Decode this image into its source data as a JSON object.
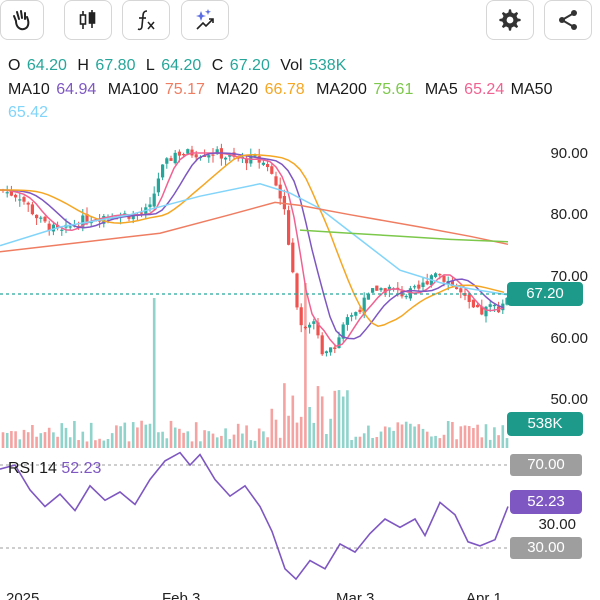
{
  "ohlc": {
    "o_label": "O",
    "o_value": "64.20",
    "h_label": "H",
    "h_value": "67.80",
    "l_label": "L",
    "l_value": "64.20",
    "c_label": "C",
    "c_value": "67.20",
    "vol_label": "Vol",
    "vol_value": "538K"
  },
  "ma": {
    "ma10_label": "MA10",
    "ma10_value": "64.94",
    "ma100_label": "MA100",
    "ma100_value": "75.17",
    "ma20_label": "MA20",
    "ma20_value": "66.78",
    "ma200_label": "MA200",
    "ma200_value": "75.61",
    "ma5_label": "MA5",
    "ma5_value": "65.24",
    "ma50_label": "MA50",
    "ma50_value": "65.42"
  },
  "price_axis": [
    "90.00",
    "80.00",
    "70.00",
    "60.00",
    "50.00"
  ],
  "current_price_tag": "67.20",
  "volume_tag": "538K",
  "rsi": {
    "label": "RSI 14",
    "value": "52.23",
    "level_70": "70.00",
    "level_30": "30.00",
    "axis_30": "30.00"
  },
  "time_axis": [
    "2025",
    "Feb 3",
    "Mar 3",
    "Apr 1"
  ],
  "colors": {
    "up": "#26a69a",
    "down": "#ef5350",
    "ma5": "#f06292",
    "ma10": "#7e57c2",
    "ma20": "#f5a623",
    "ma50": "#81d4fa",
    "ma100": "#ef7d62",
    "ma200": "#7cc84a",
    "rsi": "#7e57c2"
  },
  "icons": [
    "hand-wave-icon",
    "candlestick-icon",
    "function-icon",
    "ai-sparkle-icon",
    "settings-icon",
    "share-icon"
  ]
}
